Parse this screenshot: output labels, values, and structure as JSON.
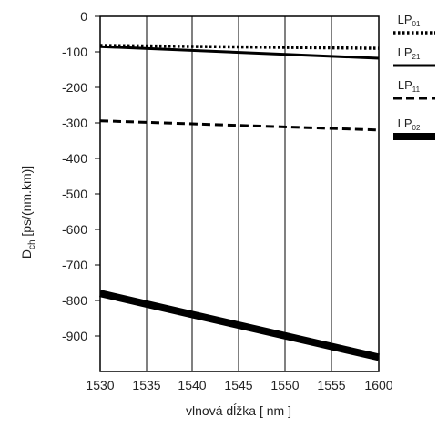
{
  "chart_data": {
    "type": "line",
    "xlabel": "vlnová dĺžka [ nm ]",
    "ylabel": {
      "main": "D",
      "sub": "ch",
      "rest": " [ps/(nm.km)]"
    },
    "xlim": [
      1530,
      1600
    ],
    "ylim": [
      -1000,
      0
    ],
    "x_ticks": [
      1530,
      1535,
      1540,
      1545,
      1550,
      1555,
      1600
    ],
    "y_ticks": [
      0,
      -100,
      -200,
      -300,
      -400,
      -500,
      -600,
      -700,
      -800,
      -900
    ],
    "grid": "vertical lines at x ticks",
    "legend_position": "right",
    "series": [
      {
        "name": "LP01",
        "label_main": "LP",
        "label_sub": "01",
        "style": "dotted",
        "x": [
          1530,
          1600
        ],
        "y": [
          -82,
          -90
        ]
      },
      {
        "name": "LP21",
        "label_main": "LP",
        "label_sub": "21",
        "style": "solid",
        "x": [
          1530,
          1600
        ],
        "y": [
          -85,
          -118
        ]
      },
      {
        "name": "LP11",
        "label_main": "LP",
        "label_sub": "11",
        "style": "dashed",
        "x": [
          1530,
          1600
        ],
        "y": [
          -294,
          -320
        ]
      },
      {
        "name": "LP02",
        "label_main": "LP",
        "label_sub": "02",
        "style": "thick",
        "x": [
          1530,
          1600
        ],
        "y": [
          -780,
          -960
        ]
      }
    ]
  }
}
